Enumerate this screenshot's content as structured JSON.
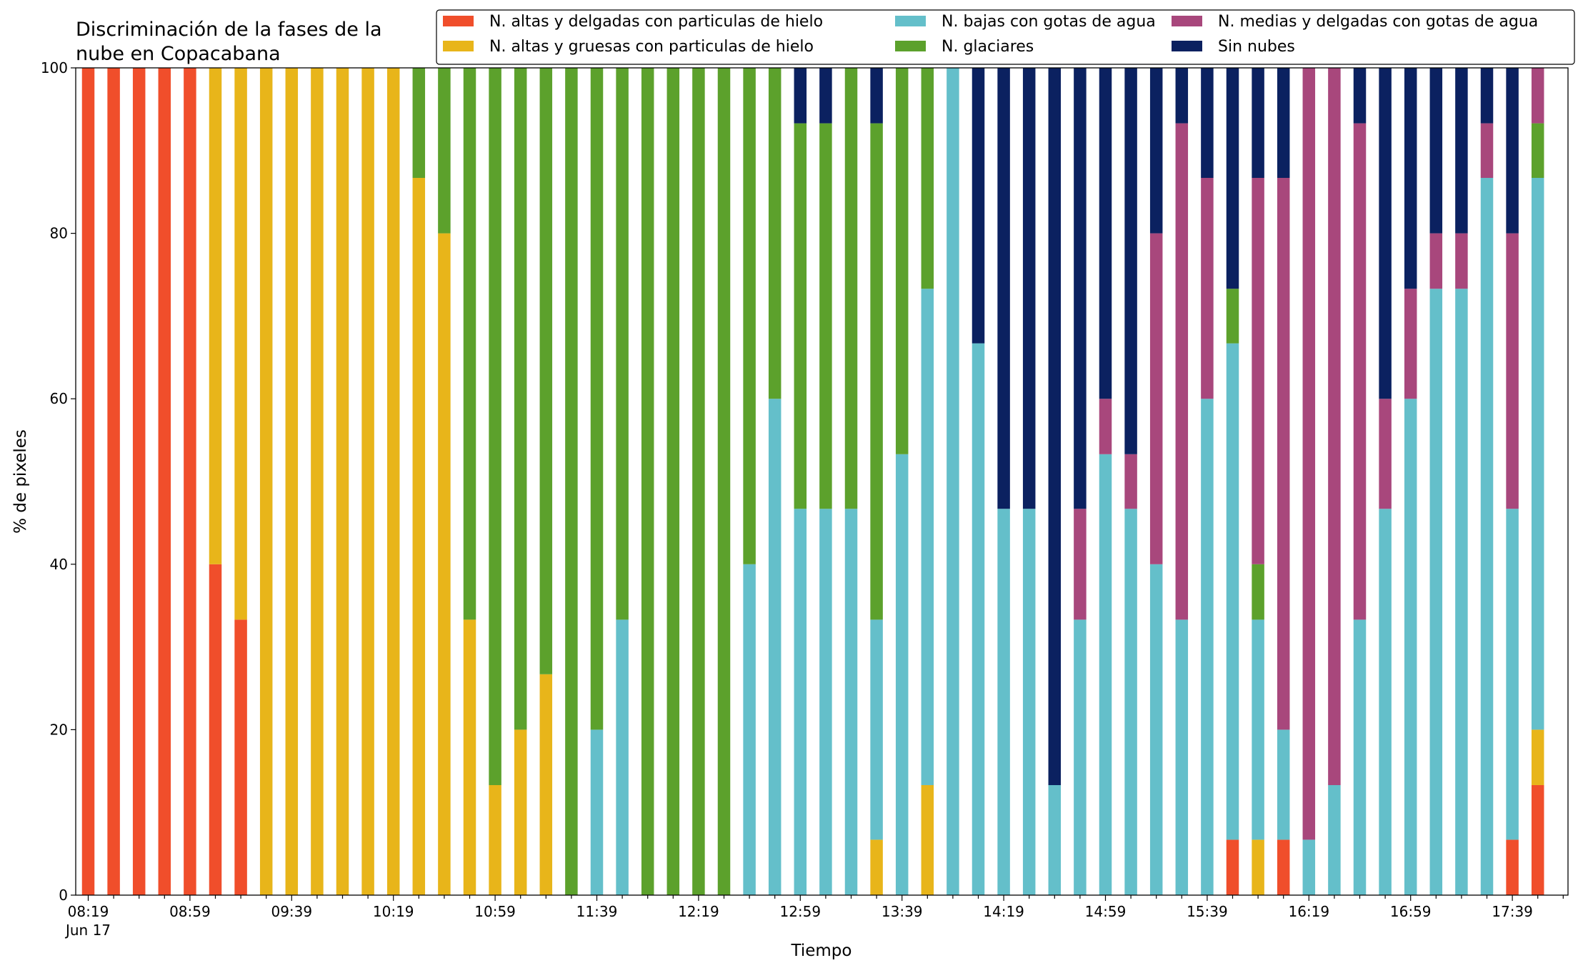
{
  "chart_data": {
    "type": "bar",
    "stacked": true,
    "title": "Discriminación de la fases de la\nnube en Copacabana",
    "xlabel": "Tiempo",
    "ylabel": "% de pixeles",
    "ylim": [
      0,
      100
    ],
    "yticks": [
      0,
      20,
      40,
      60,
      80,
      100
    ],
    "legend_position": "top-right",
    "grid": false,
    "x_start": "08:19",
    "x_interval_minutes": 10,
    "x_date_label": "Jun 17",
    "x_tick_labels": [
      "08:19",
      "08:59",
      "09:39",
      "10:19",
      "10:59",
      "11:39",
      "12:19",
      "12:59",
      "13:39",
      "14:19",
      "14:59",
      "15:39",
      "16:19",
      "16:59",
      "17:39"
    ],
    "categories": [
      "08:19",
      "08:29",
      "08:39",
      "08:49",
      "08:59",
      "09:09",
      "09:19",
      "09:29",
      "09:39",
      "09:49",
      "09:59",
      "10:09",
      "10:19",
      "10:29",
      "10:39",
      "10:49",
      "10:59",
      "11:09",
      "11:19",
      "11:29",
      "11:39",
      "11:49",
      "11:59",
      "12:09",
      "12:19",
      "12:29",
      "12:39",
      "12:49",
      "12:59",
      "13:09",
      "13:19",
      "13:29",
      "13:39",
      "13:49",
      "13:59",
      "14:09",
      "14:19",
      "14:29",
      "14:39",
      "14:49",
      "14:59",
      "15:09",
      "15:19",
      "15:29",
      "15:39",
      "15:49",
      "15:59",
      "16:09",
      "16:19",
      "16:29",
      "16:39",
      "16:49",
      "16:59",
      "17:09",
      "17:19",
      "17:29",
      "17:39",
      "17:49"
    ],
    "series": [
      {
        "name": "N. altas y delgadas con particulas de hielo",
        "color": "#f04e2b",
        "values": [
          100,
          100,
          100,
          100,
          100,
          40,
          33.3,
          0,
          0,
          0,
          0,
          0,
          0,
          0,
          0,
          0,
          0,
          0,
          0,
          0,
          0,
          0,
          0,
          0,
          0,
          0,
          0,
          0,
          0,
          0,
          0,
          0,
          0,
          0,
          0,
          0,
          0,
          0,
          0,
          0,
          0,
          0,
          0,
          0,
          0,
          6.7,
          0,
          6.7,
          0,
          0,
          0,
          0,
          0,
          0,
          0,
          0,
          6.7,
          13.3
        ]
      },
      {
        "name": "N. altas y gruesas con particulas de hielo",
        "color": "#e8b51a",
        "values": [
          0,
          0,
          0,
          0,
          0,
          60,
          66.7,
          100,
          100,
          100,
          100,
          100,
          100,
          86.7,
          80,
          33.3,
          13.3,
          20,
          26.7,
          0,
          0,
          0,
          0,
          0,
          0,
          0,
          0,
          0,
          0,
          0,
          0,
          6.7,
          0,
          13.3,
          0,
          0,
          0,
          0,
          0,
          0,
          0,
          0,
          0,
          0,
          0,
          0,
          6.7,
          0,
          0,
          0,
          0,
          0,
          0,
          0,
          0,
          0,
          0,
          6.7
        ]
      },
      {
        "name": "N. bajas con gotas de agua",
        "color": "#64bfca",
        "values": [
          0,
          0,
          0,
          0,
          0,
          0,
          0,
          0,
          0,
          0,
          0,
          0,
          0,
          0,
          0,
          0,
          0,
          0,
          0,
          0,
          20,
          33.3,
          0,
          0,
          0,
          0,
          40,
          60,
          46.7,
          46.7,
          46.7,
          26.6,
          53.3,
          60,
          100,
          66.7,
          46.7,
          46.7,
          13.3,
          33.3,
          53.3,
          46.7,
          40,
          33.3,
          60,
          60,
          26.6,
          13.3,
          6.7,
          13.3,
          33.3,
          46.7,
          60,
          73.3,
          73.3,
          86.7,
          40,
          66.7
        ]
      },
      {
        "name": "N. glaciares",
        "color": "#5ca12c",
        "values": [
          0,
          0,
          0,
          0,
          0,
          0,
          0,
          0,
          0,
          0,
          0,
          0,
          0,
          13.3,
          20,
          66.7,
          86.7,
          80,
          73.3,
          100,
          80,
          66.7,
          100,
          100,
          100,
          100,
          60,
          40,
          46.6,
          46.6,
          53.3,
          60,
          46.7,
          26.7,
          0,
          0,
          0,
          0,
          0,
          0,
          0,
          0,
          0,
          0,
          0,
          6.6,
          6.7,
          0,
          0,
          0,
          0,
          0,
          0,
          0,
          0,
          0,
          0,
          6.6
        ]
      },
      {
        "name": "N. medias y delgadas con gotas de agua",
        "color": "#a8477c",
        "values": [
          0,
          0,
          0,
          0,
          0,
          0,
          0,
          0,
          0,
          0,
          0,
          0,
          0,
          0,
          0,
          0,
          0,
          0,
          0,
          0,
          0,
          0,
          0,
          0,
          0,
          0,
          0,
          0,
          0,
          0,
          0,
          0,
          0,
          0,
          0,
          0,
          0,
          0,
          0,
          13.4,
          6.7,
          6.6,
          40,
          60,
          26.7,
          0,
          46.7,
          66.7,
          93.3,
          86.7,
          60,
          13.3,
          13.3,
          6.7,
          6.7,
          6.6,
          33.3,
          6.7
        ]
      },
      {
        "name": "Sin nubes",
        "color": "#0b2160",
        "values": [
          0,
          0,
          0,
          0,
          0,
          0,
          0,
          0,
          0,
          0,
          0,
          0,
          0,
          0,
          0,
          0,
          0,
          0,
          0,
          0,
          0,
          0,
          0,
          0,
          0,
          0,
          0,
          0,
          6.7,
          6.7,
          0,
          6.7,
          0,
          0,
          0,
          33.3,
          53.3,
          53.3,
          86.7,
          53.3,
          40,
          46.7,
          20,
          6.7,
          13.3,
          26.7,
          13.3,
          13.3,
          0,
          0,
          6.7,
          40,
          26.7,
          20,
          20,
          6.7,
          20,
          0
        ]
      }
    ]
  }
}
